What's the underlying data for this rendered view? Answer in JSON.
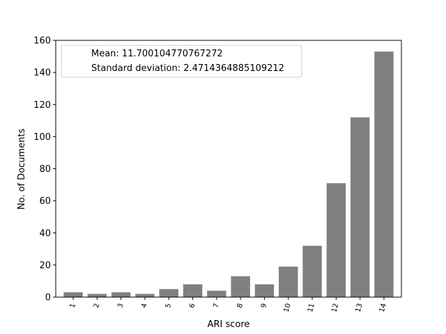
{
  "chart_data": {
    "type": "bar",
    "xlabel": "ARI score",
    "ylabel": "No. of Documents",
    "categories": [
      "1",
      "2",
      "3",
      "4",
      "5",
      "6",
      "7",
      "8",
      "9",
      "10",
      "11",
      "12",
      "13",
      "14"
    ],
    "values": [
      3,
      2,
      3,
      2,
      5,
      8,
      4,
      13,
      8,
      19,
      32,
      71,
      112,
      153
    ],
    "ylim": [
      0,
      160
    ],
    "yticks": [
      0,
      20,
      40,
      60,
      80,
      100,
      120,
      140,
      160
    ],
    "bar_color": "#808080",
    "grid": false,
    "legend": {
      "placement": "top-left",
      "entries": [
        "Mean: 11.700104770767272",
        "Standard deviation: 2.4714364885109212"
      ]
    }
  }
}
